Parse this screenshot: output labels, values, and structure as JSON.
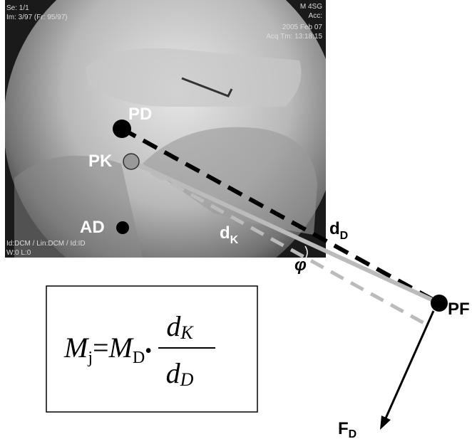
{
  "image_overlay": {
    "top_left": [
      "Se: 1/1",
      "Im: 3/97 (Fr: 95/97)"
    ],
    "top_right": [
      "M 4SG",
      "Acc:",
      "2005 Feb 07",
      "Acq Tm: 13:18:15"
    ],
    "bottom_left": [
      "Id:DCM / Lin:DCM / Id:ID",
      "W:0  L:0"
    ]
  },
  "points": {
    "pd": "PD",
    "pk": "PK",
    "ad": "AD",
    "pf": "PF"
  },
  "labels": {
    "d_k": {
      "main": "d",
      "sub": "K"
    },
    "d_d": {
      "main": "d",
      "sub": "D"
    },
    "phi": "φ",
    "f_d": {
      "main": "F",
      "sub": "D"
    }
  },
  "formula": {
    "lhs": {
      "main": "M",
      "sub": "j"
    },
    "equals": "=",
    "rhs": {
      "main": "M",
      "sub": "D"
    },
    "dot": "•",
    "numerator": {
      "main": "d",
      "sub": "K"
    },
    "denominator": {
      "main": "d",
      "sub": "D"
    }
  }
}
